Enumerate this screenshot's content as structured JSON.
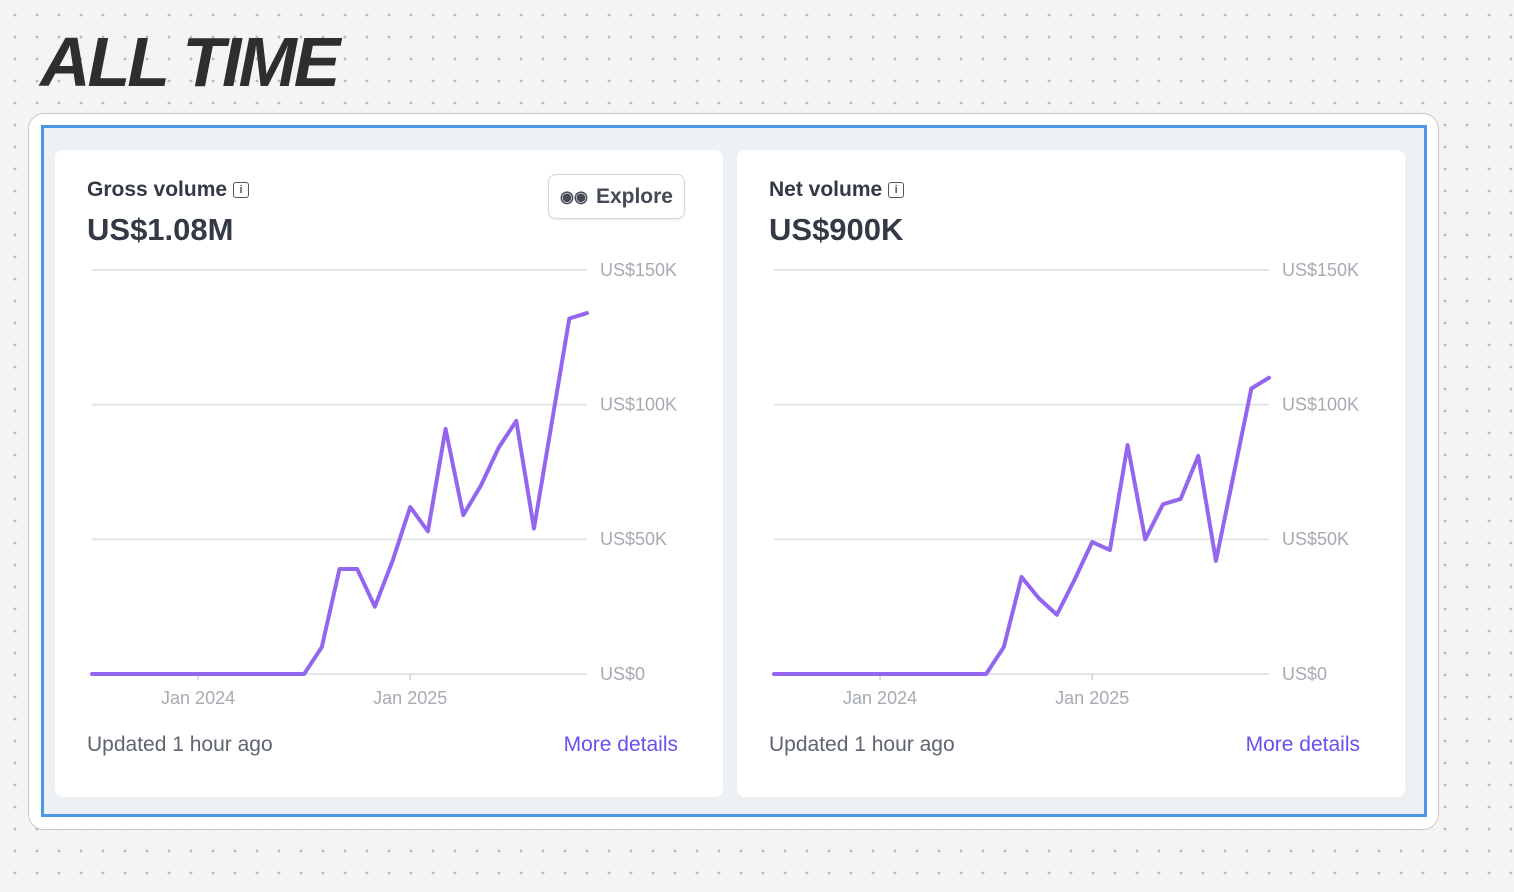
{
  "heading": "ALL TIME",
  "chart_data": [
    {
      "type": "line",
      "title": "Gross volume",
      "subtitle": "US$1.08M",
      "button": "Explore",
      "categories": [
        null,
        null,
        null,
        null,
        null,
        null,
        "Jan 2024",
        null,
        null,
        null,
        null,
        null,
        null,
        null,
        null,
        null,
        null,
        null,
        "Jan 2025",
        null,
        null,
        null,
        null,
        null,
        null,
        null,
        null,
        null,
        null
      ],
      "series": [
        {
          "name": "Gross volume",
          "color": "#9466f0",
          "values": [
            0,
            0,
            0,
            0,
            0,
            0,
            0,
            0,
            0,
            0,
            0,
            0,
            0,
            10,
            39,
            39,
            25,
            42,
            62,
            53,
            91,
            59,
            70,
            84,
            94,
            54,
            93,
            132,
            134
          ]
        }
      ],
      "ylim": [
        0,
        150
      ],
      "yticks": [
        {
          "value": 0,
          "label": "US$0"
        },
        {
          "value": 50,
          "label": "US$50K"
        },
        {
          "value": 100,
          "label": "US$100K"
        },
        {
          "value": 150,
          "label": "US$150K"
        }
      ],
      "grid": true,
      "updated": "Updated 1 hour ago",
      "link": "More details"
    },
    {
      "type": "line",
      "title": "Net volume",
      "subtitle": "US$900K",
      "categories": [
        null,
        null,
        null,
        null,
        null,
        null,
        "Jan 2024",
        null,
        null,
        null,
        null,
        null,
        null,
        null,
        null,
        null,
        null,
        null,
        "Jan 2025",
        null,
        null,
        null,
        null,
        null,
        null,
        null,
        null,
        null,
        null
      ],
      "series": [
        {
          "name": "Net volume",
          "color": "#9466f0",
          "values": [
            0,
            0,
            0,
            0,
            0,
            0,
            0,
            0,
            0,
            0,
            0,
            0,
            0,
            10,
            36,
            28,
            22,
            35,
            49,
            46,
            85,
            50,
            63,
            65,
            81,
            42,
            74,
            106,
            110
          ]
        }
      ],
      "ylim": [
        0,
        150
      ],
      "yticks": [
        {
          "value": 0,
          "label": "US$0"
        },
        {
          "value": 50,
          "label": "US$50K"
        },
        {
          "value": 100,
          "label": "US$100K"
        },
        {
          "value": 150,
          "label": "US$150K"
        }
      ],
      "grid": true,
      "updated": "Updated 1 hour ago",
      "link": "More details"
    }
  ]
}
